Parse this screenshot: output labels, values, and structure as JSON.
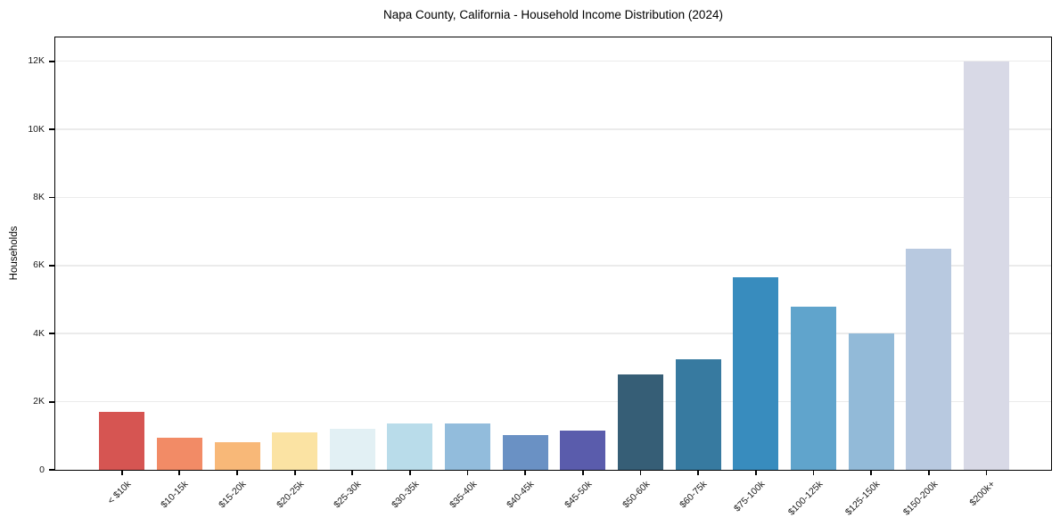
{
  "figure": {
    "title": "Napa County, California - Household Income Distribution (2024)"
  },
  "chart_data": {
    "type": "bar",
    "title": "Napa County, California - Household Income Distribution (2024)",
    "xlabel": "",
    "ylabel": "Households",
    "categories": [
      "< $10k",
      "$10-15k",
      "$15-20k",
      "$20-25k",
      "$25-30k",
      "$30-35k",
      "$35-40k",
      "$40-45k",
      "$45-50k",
      "$50-60k",
      "$60-75k",
      "$75-100k",
      "$100-125k",
      "$125-150k",
      "$150-200k",
      "$200k+"
    ],
    "values": [
      1700,
      950,
      800,
      1100,
      1200,
      1350,
      1350,
      1025,
      1150,
      2800,
      3250,
      5650,
      4800,
      4000,
      6500,
      12000
    ],
    "bar_colors": [
      "#d65552",
      "#f28b66",
      "#f8b878",
      "#fbe3a3",
      "#e2f0f4",
      "#b9dcea",
      "#92bcdc",
      "#6a91c4",
      "#5a5cac",
      "#365e76",
      "#377aa0",
      "#388cbe",
      "#60a4cc",
      "#92bad8",
      "#b8c9e0",
      "#d8d9e6"
    ],
    "yticks": {
      "labels": [
        "0",
        "2K",
        "4K",
        "6K",
        "8K",
        "10K",
        "12K"
      ],
      "values": [
        0,
        2000,
        4000,
        6000,
        8000,
        10000,
        12000
      ]
    },
    "ylim": [
      0,
      12700
    ],
    "grid": "horizontal",
    "legend": "none",
    "colors": {
      "gridline": "#ebebeb",
      "axis": "#000000",
      "background": "#ffffff",
      "text": "#1a1a1a"
    }
  }
}
